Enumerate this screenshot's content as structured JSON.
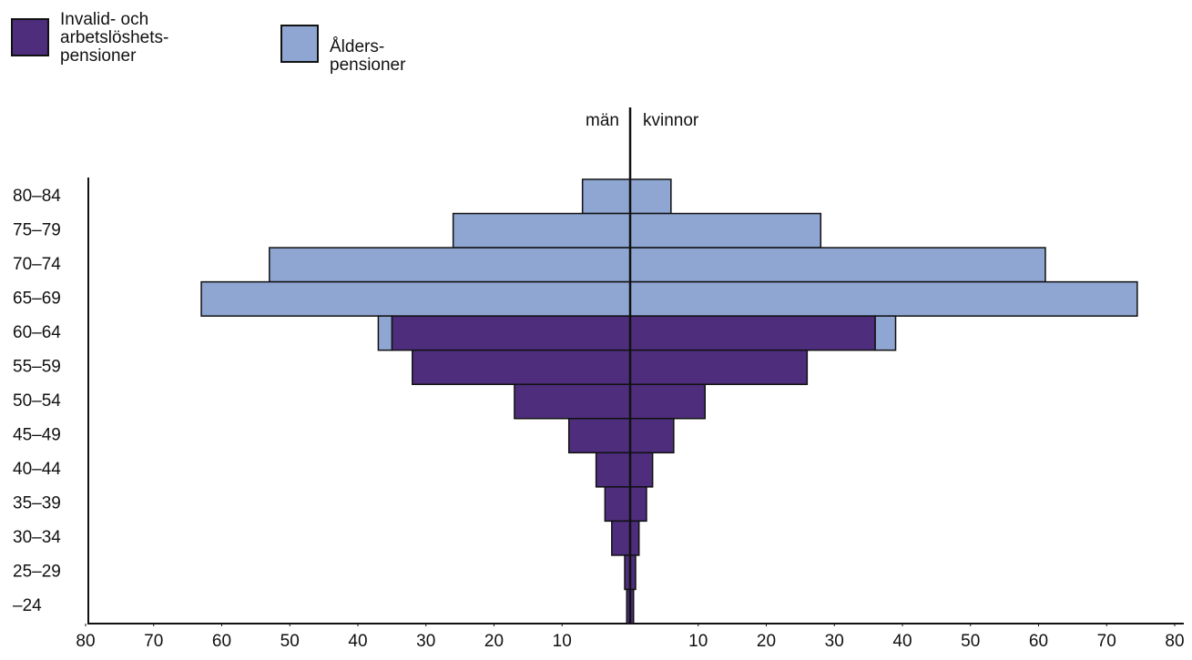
{
  "chart_data": {
    "type": "bar",
    "orientation": "horizontal-pyramid",
    "side_labels": [
      "män",
      "kvinnor"
    ],
    "categories": [
      "80–84",
      "75–79",
      "70–74",
      "65–69",
      "60–64",
      "55–59",
      "50–54",
      "45–49",
      "40–44",
      "35–39",
      "30–34",
      "25–29",
      "–24"
    ],
    "series": [
      {
        "name": "Invalid- och\narbetslöshets-\npensioner",
        "color": "#4d2d7c",
        "men": [
          0,
          0,
          0,
          0,
          35,
          32,
          17,
          9,
          5,
          3.7,
          2.7,
          0.8,
          0.5
        ],
        "women": [
          0,
          0,
          0,
          0,
          36,
          26,
          11,
          6.4,
          3.3,
          2.4,
          1.3,
          0.8,
          0.5
        ]
      },
      {
        "name": "Ålders-\npensioner",
        "color": "#8fa6d3",
        "men": [
          7,
          26,
          53,
          63,
          2,
          0,
          0,
          0,
          0,
          0,
          0,
          0,
          0
        ],
        "women": [
          6,
          28,
          61,
          74.5,
          3,
          0,
          0,
          0,
          0,
          0,
          0,
          0,
          0
        ]
      }
    ],
    "xlim": [
      0,
      80
    ],
    "xticks": [
      10,
      20,
      30,
      40,
      50,
      60,
      70,
      80
    ]
  }
}
